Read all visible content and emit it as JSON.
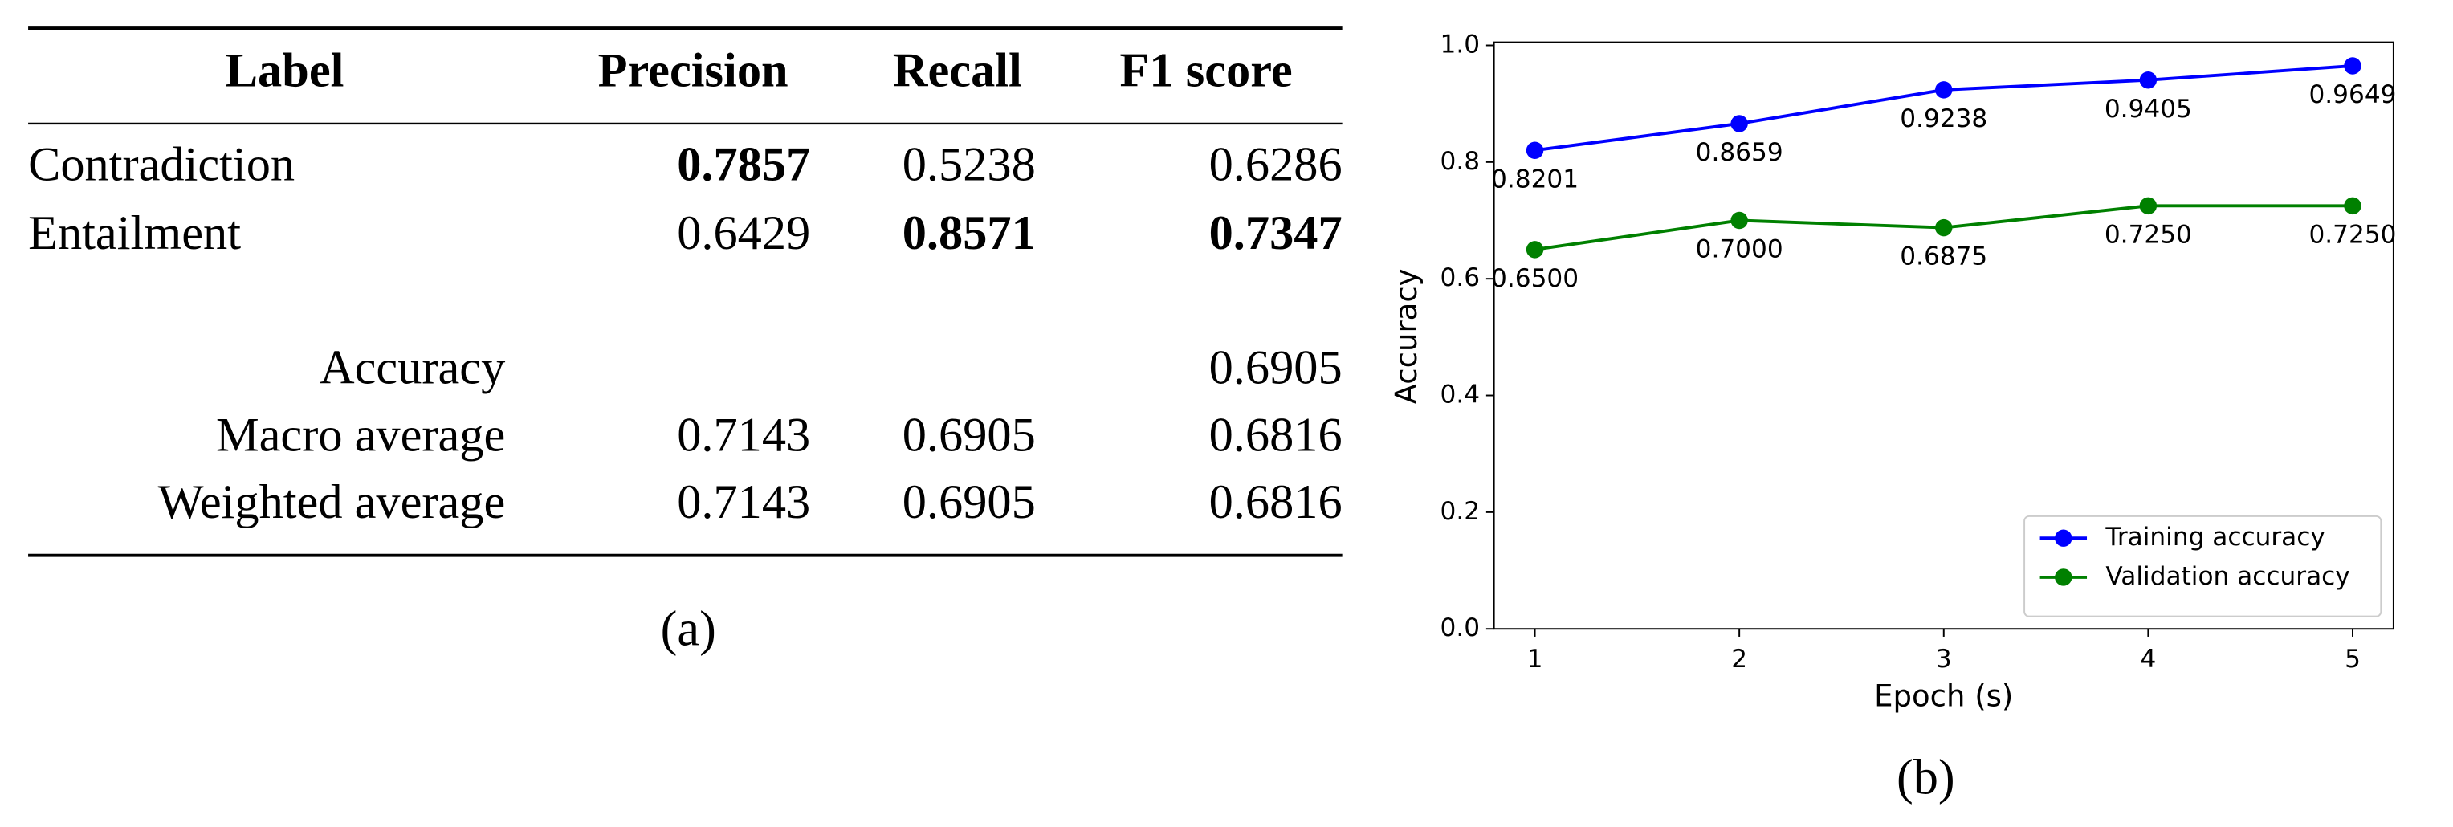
{
  "table": {
    "headers": {
      "label": "Label",
      "precision": "Precision",
      "recall": "Recall",
      "f1": "F1 score"
    },
    "rows": [
      {
        "label": "Contradiction",
        "precision": "0.7857",
        "recall": "0.5238",
        "f1": "0.6286"
      },
      {
        "label": "Entailment",
        "precision": "0.6429",
        "recall": "0.8571",
        "f1": "0.7347"
      }
    ],
    "summary": [
      {
        "label": "Accuracy",
        "f1": "0.6905"
      },
      {
        "label": "Macro average",
        "precision": "0.7143",
        "recall": "0.6905",
        "f1": "0.6816"
      },
      {
        "label": "Weighted average",
        "precision": "0.7143",
        "recall": "0.6905",
        "f1": "0.6816"
      }
    ],
    "caption": "(a)"
  },
  "chart_data": {
    "type": "line",
    "caption": "(b)",
    "x_label": "Epoch (s)",
    "y_label": "Accuracy",
    "x": [
      1,
      2,
      3,
      4,
      5
    ],
    "series": [
      {
        "name": "Training accuracy",
        "color": "#0000ff",
        "values": [
          0.8201,
          0.8659,
          0.9238,
          0.9405,
          0.9649
        ],
        "value_labels": [
          "0.8201",
          "0.8659",
          "0.9238",
          "0.9405",
          "0.9649"
        ]
      },
      {
        "name": "Validation accuracy",
        "color": "#008000",
        "values": [
          0.65,
          0.7,
          0.6875,
          0.725,
          0.725
        ],
        "value_labels": [
          "0.6500",
          "0.7000",
          "0.6875",
          "0.7250",
          "0.7250"
        ]
      }
    ],
    "xlim": [
      0.8,
      5.2
    ],
    "ylim": [
      0,
      1.0
    ],
    "xticks": [
      1,
      2,
      3,
      4,
      5
    ],
    "yticks": [
      {
        "value": 0,
        "label": "0.0"
      },
      {
        "value": 0.2,
        "label": "0.2"
      },
      {
        "value": 0.4,
        "label": "0.4"
      },
      {
        "value": 0.6,
        "label": "0.6"
      },
      {
        "value": 0.8,
        "label": "0.8"
      },
      {
        "value": 1.0,
        "label": "1.0"
      }
    ],
    "legend": "lower right"
  }
}
